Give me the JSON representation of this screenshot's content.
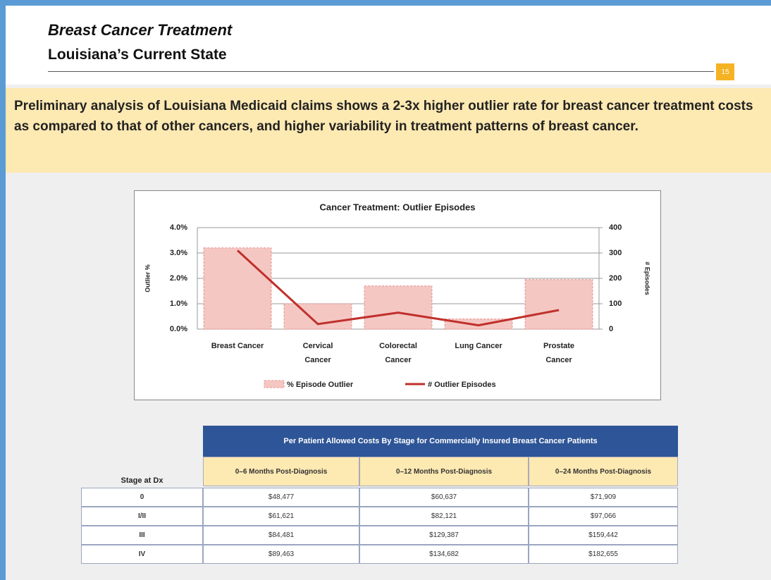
{
  "header": {
    "title": "Breast Cancer Treatment",
    "subtitle": "Louisiana’s Current State",
    "page_number": "15"
  },
  "callout": "Preliminary analysis of Louisiana Medicaid claims shows a 2-3x higher outlier rate for breast cancer treatment costs as compared to that of other cancers, and higher variability in treatment patterns of breast cancer.",
  "chart_data": {
    "type": "bar-line",
    "title": "Cancer Treatment: Outlier Episodes",
    "categories": [
      "Breast Cancer",
      "Cervical Cancer",
      "Colorectal Cancer",
      "Lung Cancer",
      "Prostate Cancer"
    ],
    "series": [
      {
        "name": "% Episode Outlier",
        "type": "bar",
        "color": "#f4c7c3",
        "values": [
          3.2,
          1.0,
          1.7,
          0.4,
          1.95
        ]
      },
      {
        "name": "# Outlier Episodes",
        "type": "line",
        "axis": "y2",
        "color": "#c0302b",
        "values": [
          310,
          20,
          65,
          15,
          75
        ]
      }
    ],
    "ylabel": "Outlier %",
    "y2label": "# Episodes",
    "ylim": [
      0,
      4
    ],
    "yticks": [
      {
        "value": 0,
        "label": "0.0%"
      },
      {
        "value": 1,
        "label": "1.0%"
      },
      {
        "value": 2,
        "label": "2.0%"
      },
      {
        "value": 3,
        "label": "3.0%"
      },
      {
        "value": 4,
        "label": "4.0%"
      }
    ],
    "y2lim": [
      0,
      400
    ],
    "y2ticks": [
      0,
      100,
      200,
      300,
      400
    ],
    "grid": true
  },
  "table": {
    "title": "Per Patient Allowed Costs By Stage for Commercially Insured Breast Cancer Patients",
    "stage_header": "Stage at Dx",
    "columns": [
      "0–6 Months Post-Diagnosis",
      "0–12 Months Post-Diagnosis",
      "0–24 Months Post-Diagnosis"
    ],
    "rows": [
      [
        "0",
        "$48,477",
        "$60,637",
        "$71,909"
      ],
      [
        "I/II",
        "$61,621",
        "$82,121",
        "$97,066"
      ],
      [
        "III",
        "$84,481",
        "$129,387",
        "$159,442"
      ],
      [
        "IV",
        "$89,463",
        "$134,682",
        "$182,655"
      ]
    ]
  }
}
